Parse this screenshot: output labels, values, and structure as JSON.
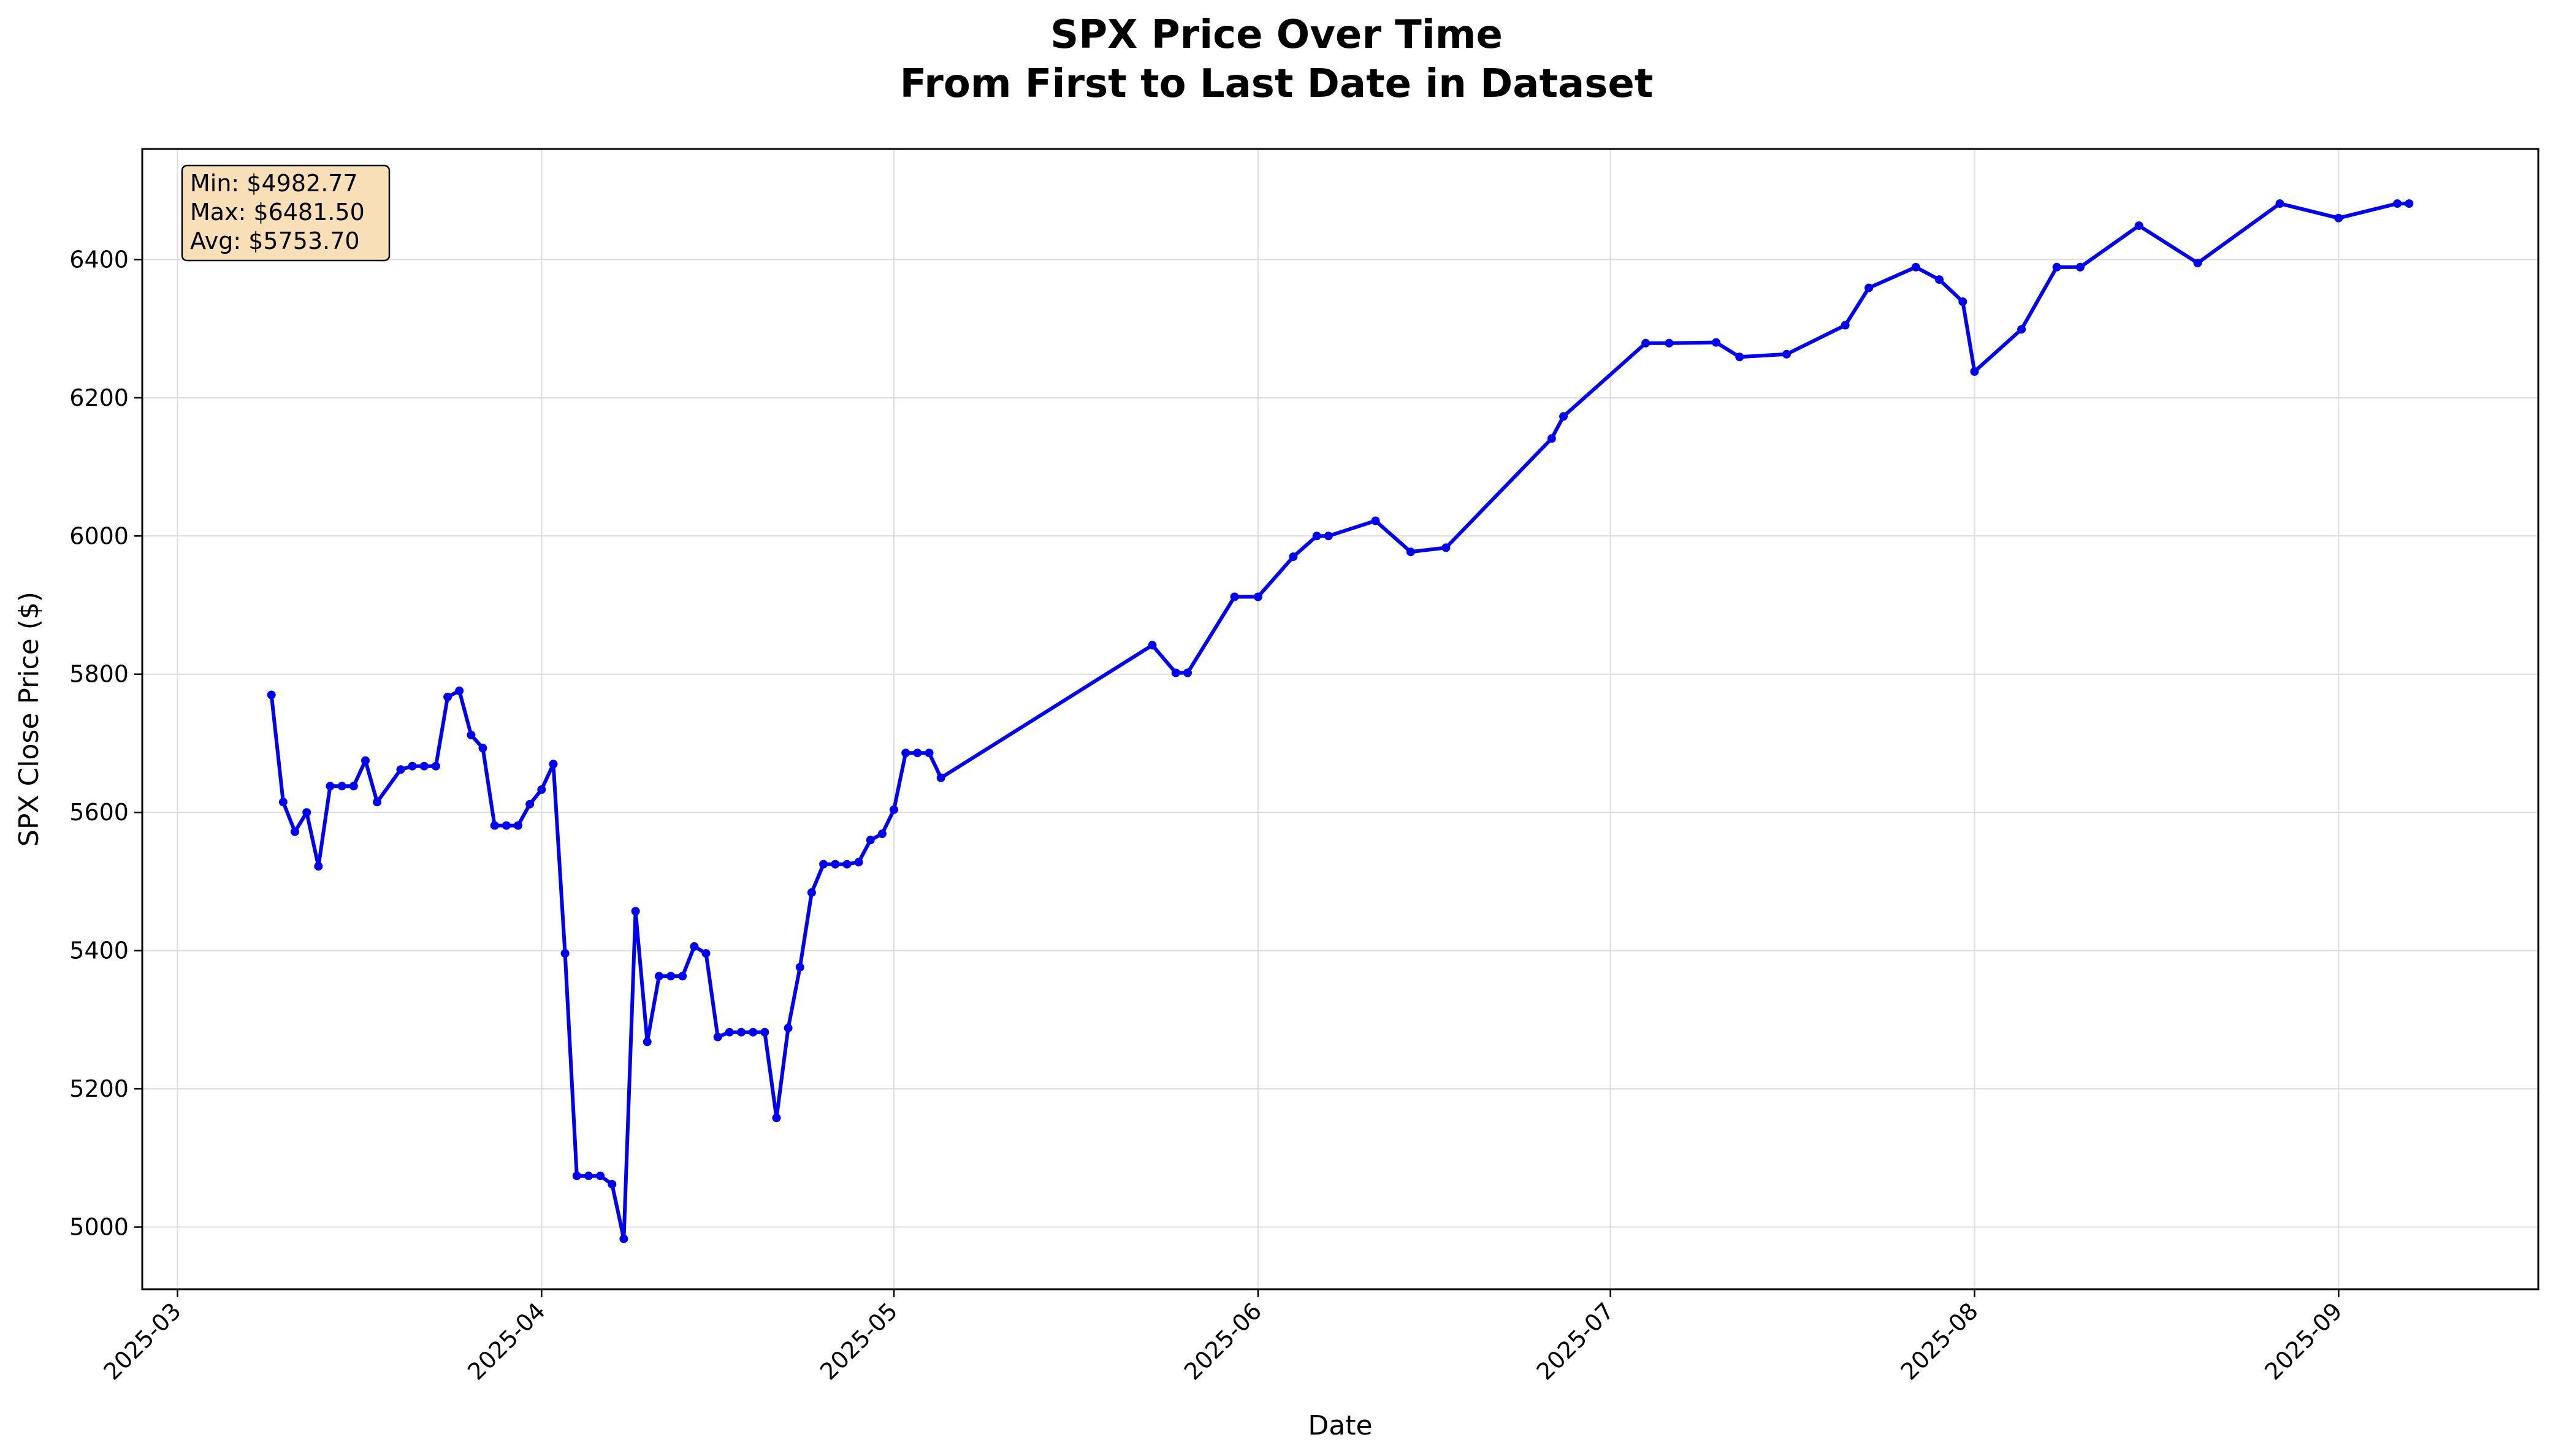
{
  "chart_data": {
    "type": "line",
    "title_line1": "SPX Price Over Time",
    "title_line2": "From First to Last Date in Dataset",
    "xlabel": "Date",
    "ylabel": "SPX Close Price ($)",
    "ylim": [
      4910,
      6560
    ],
    "xlim": [
      "2025-02-26",
      "2025-09-18"
    ],
    "grid": true,
    "line_color": "#0000ee",
    "stats_box_color": "#f8dfb8",
    "x_ticks": [
      "2025-03-01",
      "2025-04-01",
      "2025-05-01",
      "2025-06-01",
      "2025-07-01",
      "2025-08-01",
      "2025-09-01"
    ],
    "x_tick_labels": [
      "2025-03",
      "2025-04",
      "2025-05",
      "2025-06",
      "2025-07",
      "2025-08",
      "2025-09"
    ],
    "y_ticks": [
      5000,
      5200,
      5400,
      5600,
      5800,
      6000,
      6200,
      6400
    ],
    "y_tick_labels": [
      "5000",
      "5200",
      "5400",
      "5600",
      "5800",
      "6000",
      "6200",
      "6400"
    ],
    "stats": {
      "min": "Min: $4982.77",
      "max": "Max: $6481.50",
      "avg": "Avg: $5753.70"
    },
    "series": [
      {
        "points": [
          [
            "2025-03-09",
            5770
          ],
          [
            "2025-03-10",
            5615
          ],
          [
            "2025-03-11",
            5572
          ],
          [
            "2025-03-12",
            5600
          ],
          [
            "2025-03-13",
            5522
          ],
          [
            "2025-03-14",
            5638
          ],
          [
            "2025-03-15",
            5638
          ],
          [
            "2025-03-16",
            5638
          ],
          [
            "2025-03-17",
            5675
          ],
          [
            "2025-03-18",
            5615
          ],
          [
            "2025-03-20",
            5662
          ],
          [
            "2025-03-21",
            5667
          ],
          [
            "2025-03-22",
            5667
          ],
          [
            "2025-03-23",
            5667
          ],
          [
            "2025-03-24",
            5767
          ],
          [
            "2025-03-25",
            5776
          ],
          [
            "2025-03-26",
            5712
          ],
          [
            "2025-03-27",
            5693
          ],
          [
            "2025-03-28",
            5581
          ],
          [
            "2025-03-29",
            5581
          ],
          [
            "2025-03-30",
            5581
          ],
          [
            "2025-03-31",
            5612
          ],
          [
            "2025-04-01",
            5633
          ],
          [
            "2025-04-02",
            5670
          ],
          [
            "2025-04-03",
            5396
          ],
          [
            "2025-04-04",
            5074
          ],
          [
            "2025-04-05",
            5074
          ],
          [
            "2025-04-06",
            5074
          ],
          [
            "2025-04-07",
            5062
          ],
          [
            "2025-04-08",
            4983
          ],
          [
            "2025-04-09",
            5457
          ],
          [
            "2025-04-10",
            5268
          ],
          [
            "2025-04-11",
            5363
          ],
          [
            "2025-04-12",
            5363
          ],
          [
            "2025-04-13",
            5363
          ],
          [
            "2025-04-14",
            5406
          ],
          [
            "2025-04-15",
            5396
          ],
          [
            "2025-04-16",
            5275
          ],
          [
            "2025-04-17",
            5282
          ],
          [
            "2025-04-18",
            5282
          ],
          [
            "2025-04-19",
            5282
          ],
          [
            "2025-04-20",
            5282
          ],
          [
            "2025-04-21",
            5158
          ],
          [
            "2025-04-22",
            5288
          ],
          [
            "2025-04-23",
            5376
          ],
          [
            "2025-04-24",
            5484
          ],
          [
            "2025-04-25",
            5525
          ],
          [
            "2025-04-26",
            5525
          ],
          [
            "2025-04-27",
            5525
          ],
          [
            "2025-04-28",
            5528
          ],
          [
            "2025-04-29",
            5560
          ],
          [
            "2025-04-30",
            5569
          ],
          [
            "2025-05-01",
            5604
          ],
          [
            "2025-05-02",
            5686
          ],
          [
            "2025-05-03",
            5686
          ],
          [
            "2025-05-04",
            5686
          ],
          [
            "2025-05-05",
            5650
          ],
          [
            "2025-05-23",
            5842
          ],
          [
            "2025-05-25",
            5802
          ],
          [
            "2025-05-26",
            5802
          ],
          [
            "2025-05-30",
            5912
          ],
          [
            "2025-06-01",
            5912
          ],
          [
            "2025-06-04",
            5970
          ],
          [
            "2025-06-06",
            6000
          ],
          [
            "2025-06-07",
            6000
          ],
          [
            "2025-06-11",
            6022
          ],
          [
            "2025-06-14",
            5977
          ],
          [
            "2025-06-17",
            5983
          ],
          [
            "2025-06-26",
            6141
          ],
          [
            "2025-06-27",
            6173
          ],
          [
            "2025-07-04",
            6279
          ],
          [
            "2025-07-06",
            6279
          ],
          [
            "2025-07-10",
            6280
          ],
          [
            "2025-07-12",
            6259
          ],
          [
            "2025-07-16",
            6263
          ],
          [
            "2025-07-21",
            6305
          ],
          [
            "2025-07-23",
            6359
          ],
          [
            "2025-07-27",
            6389
          ],
          [
            "2025-07-29",
            6371
          ],
          [
            "2025-07-31",
            6339
          ],
          [
            "2025-08-01",
            6238
          ],
          [
            "2025-08-05",
            6299
          ],
          [
            "2025-08-08",
            6389
          ],
          [
            "2025-08-10",
            6389
          ],
          [
            "2025-08-15",
            6449
          ],
          [
            "2025-08-20",
            6395
          ],
          [
            "2025-08-27",
            6481
          ],
          [
            "2025-09-01",
            6460
          ],
          [
            "2025-09-06",
            6481
          ],
          [
            "2025-09-07",
            6481
          ]
        ]
      }
    ]
  }
}
